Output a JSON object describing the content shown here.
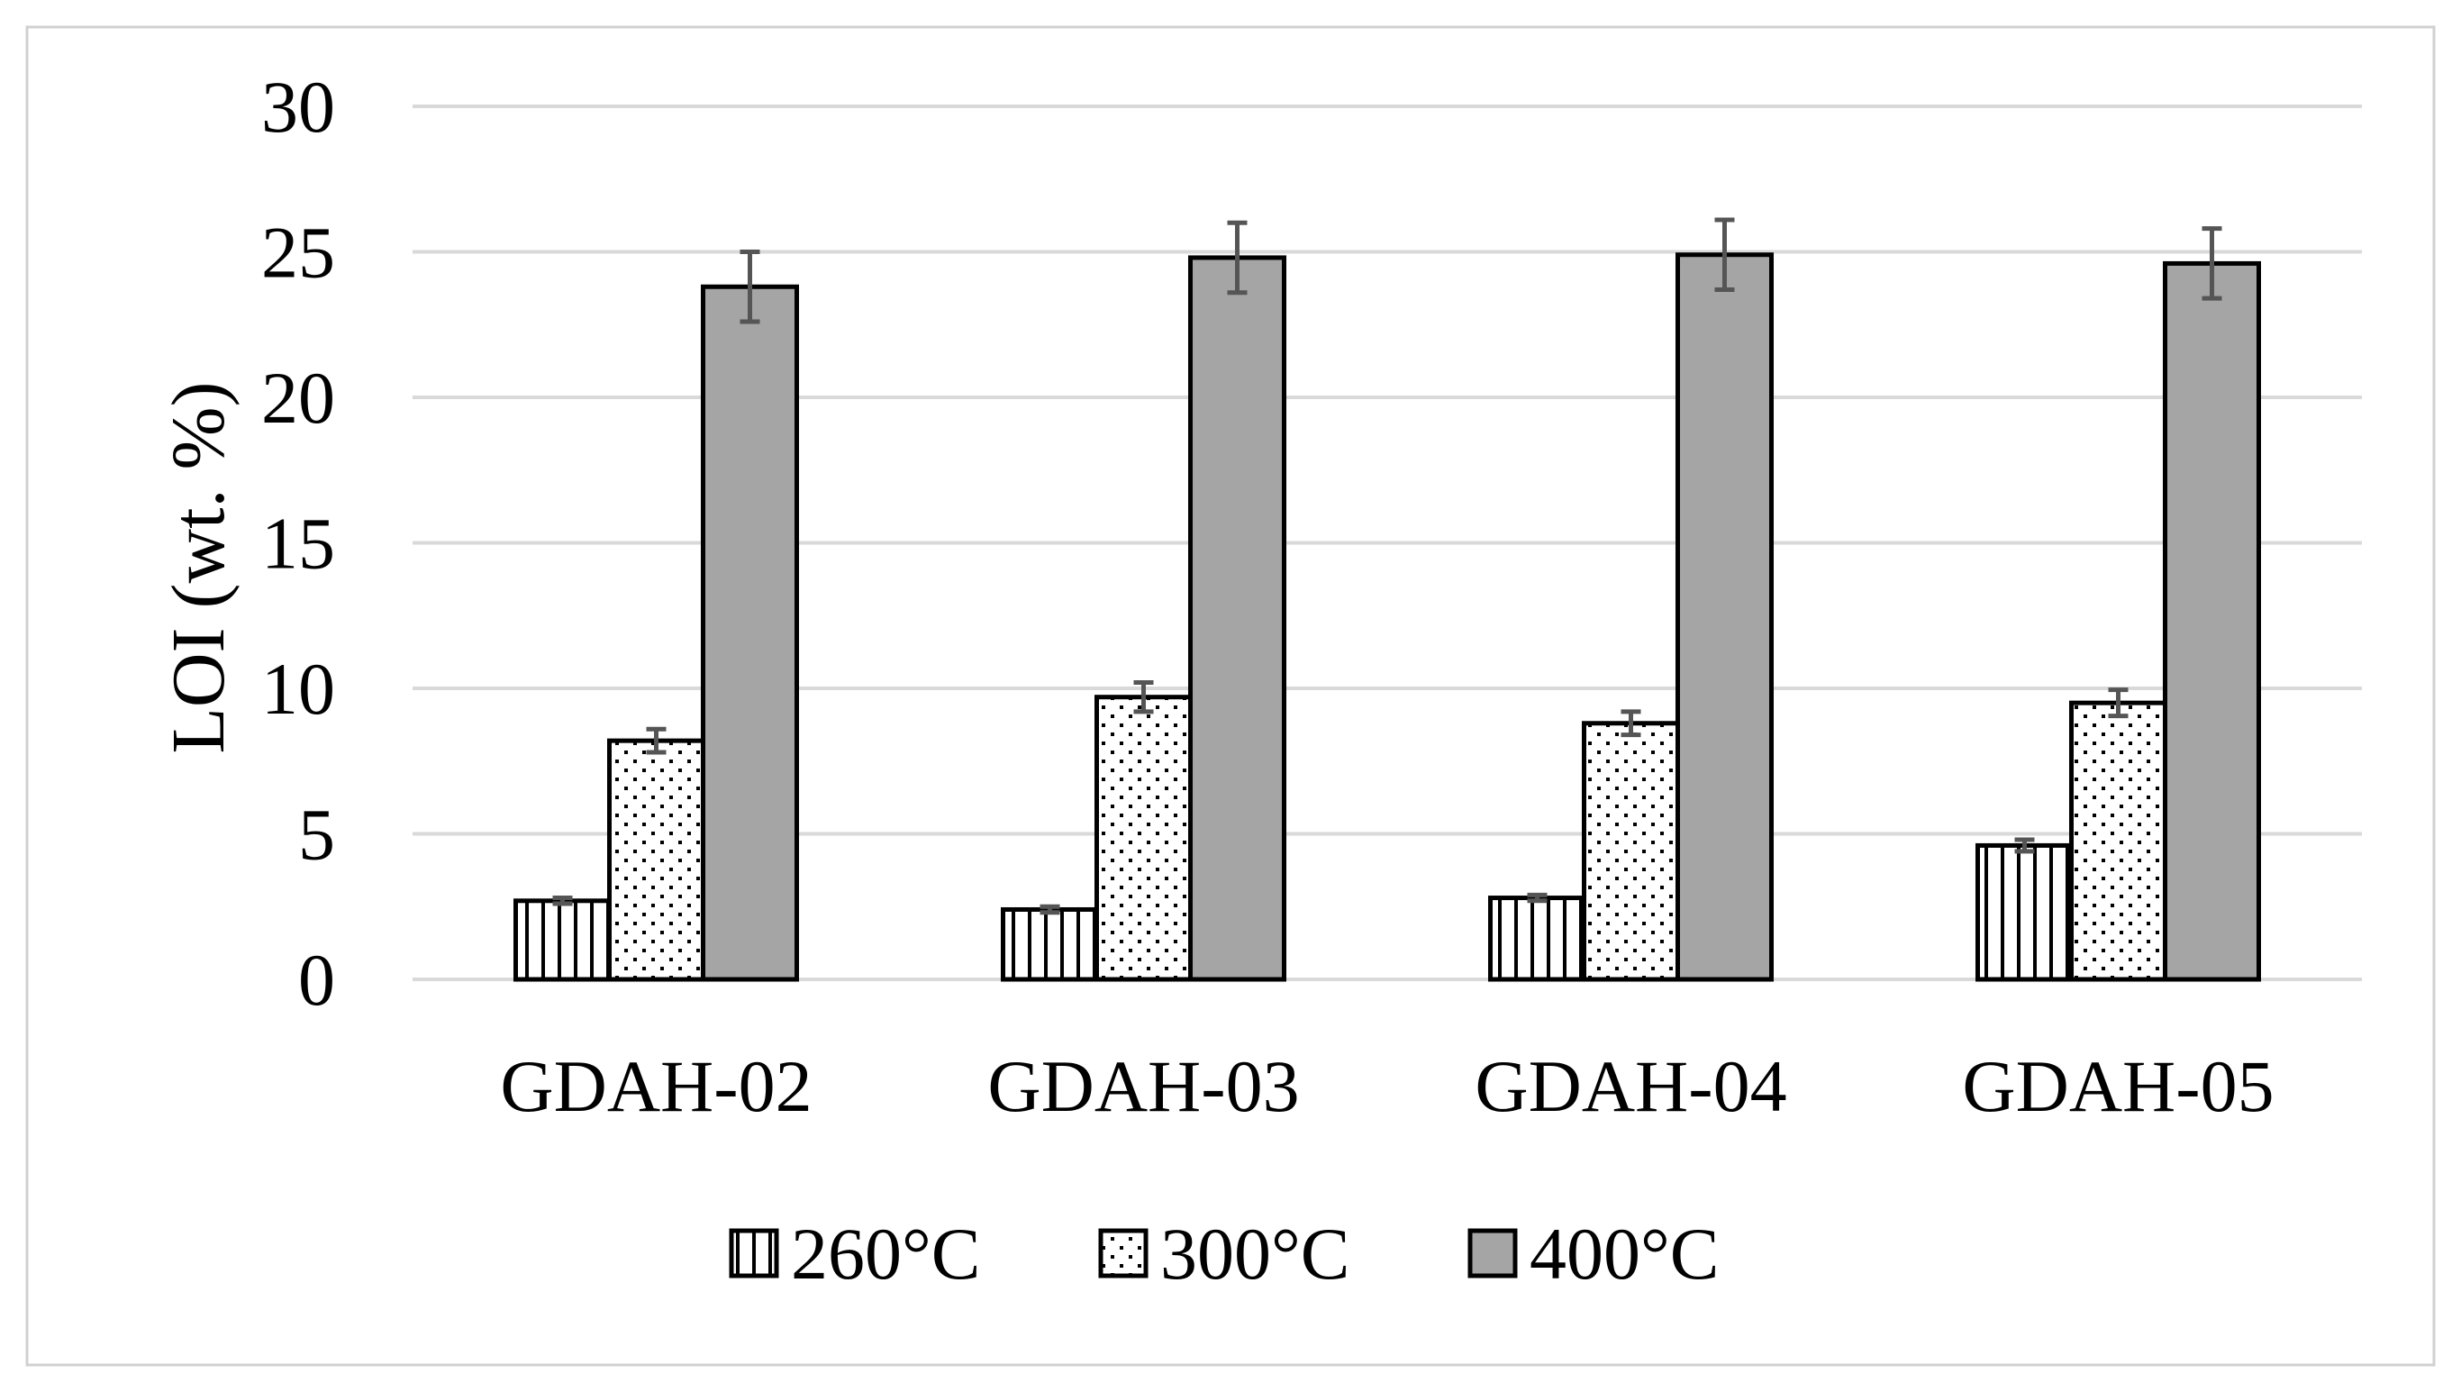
{
  "chart_data": {
    "type": "bar",
    "title": "",
    "xlabel": "",
    "ylabel": "LOI (wt. %)",
    "ylim": [
      0,
      30
    ],
    "yticks": [
      0,
      5,
      10,
      15,
      20,
      25,
      30
    ],
    "grid": true,
    "legend_position": "bottom",
    "categories": [
      "GDAH-02",
      "GDAH-03",
      "GDAH-04",
      "GDAH-05"
    ],
    "series": [
      {
        "name": "260°C",
        "pattern": "vertical-stripes",
        "values": [
          2.7,
          2.4,
          2.8,
          4.6
        ],
        "errors": [
          0.1,
          0.1,
          0.1,
          0.2
        ]
      },
      {
        "name": "300°C",
        "pattern": "dots",
        "values": [
          8.2,
          9.7,
          8.8,
          9.5
        ],
        "errors": [
          0.4,
          0.5,
          0.4,
          0.45
        ]
      },
      {
        "name": "400°C",
        "pattern": "solid",
        "values": [
          23.8,
          24.8,
          24.9,
          24.6
        ],
        "errors": [
          1.2,
          1.2,
          1.2,
          1.2
        ]
      }
    ],
    "colors": {
      "bar_outline": "#000000",
      "solid_fill": "#a5a5a5",
      "error_bar": "#555555",
      "gridline": "#d9d9d9",
      "frame": "#d0d0d0"
    }
  }
}
